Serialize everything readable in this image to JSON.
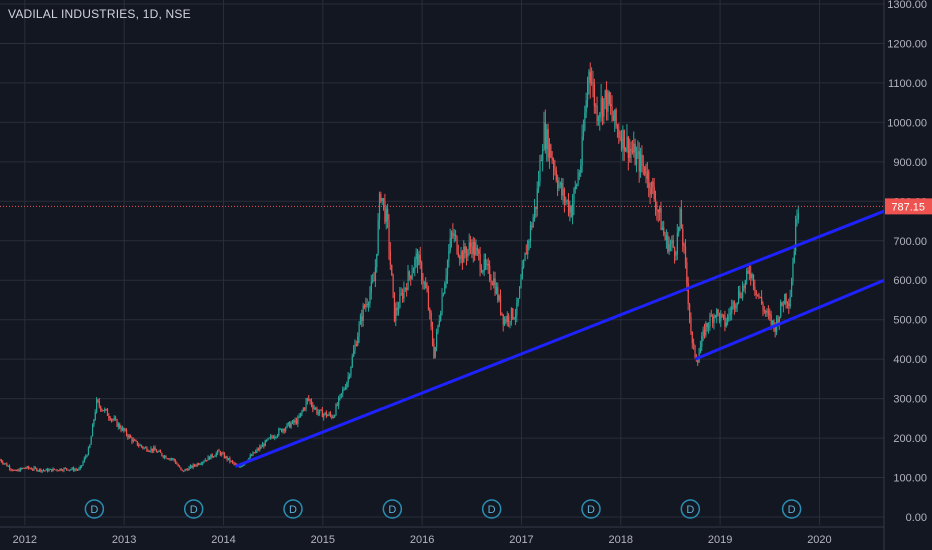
{
  "header": {
    "title": "VADILAL INDUSTRIES, 1D, NSE"
  },
  "colors": {
    "background": "#131722",
    "grid": "#2a2e39",
    "up": "#26a69a",
    "down": "#ef5350",
    "trendline": "#1e22ff",
    "price_tag": "#ef5350",
    "axis_text": "#b2b5be",
    "dividend_marker": "#2a8eb3"
  },
  "chart_data": {
    "type": "candlestick",
    "title": "VADILAL INDUSTRIES, 1D, NSE",
    "x_ticks": [
      "2012",
      "2013",
      "2014",
      "2015",
      "2016",
      "2017",
      "2018",
      "2019",
      "2020"
    ],
    "y_ticks": [
      "0.00",
      "100.00",
      "200.00",
      "300.00",
      "400.00",
      "500.00",
      "600.00",
      "700.00",
      "800.00",
      "900.00",
      "1000.00",
      "1100.00",
      "1200.00",
      "1300.00"
    ],
    "ylim": [
      0,
      1300
    ],
    "xlim": [
      2011.75,
      2020.65
    ],
    "grid": true,
    "last_price": {
      "value": 787.15,
      "label": "787.15"
    },
    "price_path": [
      [
        2011.75,
        145
      ],
      [
        2011.9,
        115
      ],
      [
        2012.0,
        125
      ],
      [
        2012.2,
        118
      ],
      [
        2012.4,
        122
      ],
      [
        2012.55,
        120
      ],
      [
        2012.65,
        175
      ],
      [
        2012.72,
        290
      ],
      [
        2012.8,
        270
      ],
      [
        2012.95,
        230
      ],
      [
        2013.1,
        190
      ],
      [
        2013.2,
        175
      ],
      [
        2013.3,
        170
      ],
      [
        2013.4,
        155
      ],
      [
        2013.5,
        145
      ],
      [
        2013.58,
        115
      ],
      [
        2013.7,
        130
      ],
      [
        2013.85,
        150
      ],
      [
        2013.95,
        165
      ],
      [
        2014.05,
        145
      ],
      [
        2014.15,
        125
      ],
      [
        2014.3,
        160
      ],
      [
        2014.45,
        195
      ],
      [
        2014.6,
        225
      ],
      [
        2014.75,
        245
      ],
      [
        2014.85,
        300
      ],
      [
        2014.95,
        265
      ],
      [
        2015.1,
        255
      ],
      [
        2015.25,
        350
      ],
      [
        2015.4,
        520
      ],
      [
        2015.52,
        600
      ],
      [
        2015.58,
        830
      ],
      [
        2015.65,
        740
      ],
      [
        2015.72,
        510
      ],
      [
        2015.85,
        600
      ],
      [
        2015.95,
        660
      ],
      [
        2016.05,
        560
      ],
      [
        2016.12,
        410
      ],
      [
        2016.2,
        560
      ],
      [
        2016.3,
        720
      ],
      [
        2016.4,
        660
      ],
      [
        2016.5,
        690
      ],
      [
        2016.6,
        640
      ],
      [
        2016.72,
        600
      ],
      [
        2016.82,
        500
      ],
      [
        2016.95,
        520
      ],
      [
        2017.05,
        680
      ],
      [
        2017.15,
        800
      ],
      [
        2017.22,
        980
      ],
      [
        2017.3,
        920
      ],
      [
        2017.4,
        820
      ],
      [
        2017.5,
        780
      ],
      [
        2017.6,
        900
      ],
      [
        2017.68,
        1150
      ],
      [
        2017.75,
        1030
      ],
      [
        2017.85,
        1060
      ],
      [
        2017.95,
        990
      ],
      [
        2018.05,
        950
      ],
      [
        2018.15,
        910
      ],
      [
        2018.25,
        880
      ],
      [
        2018.35,
        800
      ],
      [
        2018.45,
        700
      ],
      [
        2018.55,
        680
      ],
      [
        2018.6,
        760
      ],
      [
        2018.67,
        580
      ],
      [
        2018.72,
        430
      ],
      [
        2018.77,
        400
      ],
      [
        2018.85,
        480
      ],
      [
        2018.95,
        520
      ],
      [
        2019.05,
        490
      ],
      [
        2019.15,
        550
      ],
      [
        2019.25,
        590
      ],
      [
        2019.3,
        630
      ],
      [
        2019.37,
        570
      ],
      [
        2019.45,
        520
      ],
      [
        2019.55,
        480
      ],
      [
        2019.65,
        560
      ],
      [
        2019.7,
        550
      ],
      [
        2019.75,
        700
      ],
      [
        2019.78,
        800
      ],
      [
        2019.8,
        787
      ]
    ],
    "trendlines": [
      {
        "from": [
          2014.12,
          128
        ],
        "to": [
          2020.65,
          775
        ]
      },
      {
        "from": [
          2018.75,
          400
        ],
        "to": [
          2020.65,
          600
        ]
      }
    ],
    "dividend_markers": [
      {
        "x": 2012.7,
        "label": "D"
      },
      {
        "x": 2013.7,
        "label": "D"
      },
      {
        "x": 2014.7,
        "label": "D"
      },
      {
        "x": 2015.7,
        "label": "D"
      },
      {
        "x": 2016.7,
        "label": "D"
      },
      {
        "x": 2017.7,
        "label": "D"
      },
      {
        "x": 2018.7,
        "label": "D"
      },
      {
        "x": 2019.72,
        "label": "D"
      }
    ]
  }
}
